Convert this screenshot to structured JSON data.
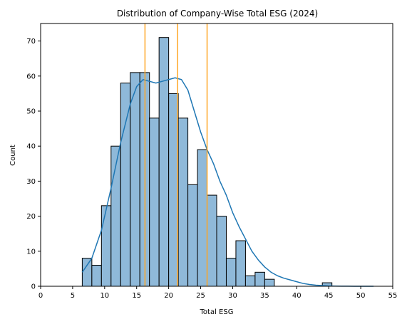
{
  "chart_data": {
    "type": "bar",
    "title": "Distribution of Company-Wise Total ESG (2024)",
    "xlabel": "Total ESG",
    "ylabel": "Count",
    "xlim": [
      0,
      55
    ],
    "ylim": [
      0,
      75
    ],
    "xticks": [
      0,
      5,
      10,
      15,
      20,
      25,
      30,
      35,
      40,
      45,
      50,
      55
    ],
    "yticks": [
      0,
      10,
      20,
      30,
      40,
      50,
      60,
      70
    ],
    "grid": false,
    "bin_width": 1.5,
    "bin_start": 6.5,
    "bins": [
      {
        "x0": 6.5,
        "x1": 8.0,
        "count": 8
      },
      {
        "x0": 8.0,
        "x1": 9.5,
        "count": 6
      },
      {
        "x0": 9.5,
        "x1": 11.0,
        "count": 23
      },
      {
        "x0": 11.0,
        "x1": 12.5,
        "count": 40
      },
      {
        "x0": 12.5,
        "x1": 14.0,
        "count": 58
      },
      {
        "x0": 14.0,
        "x1": 15.5,
        "count": 61
      },
      {
        "x0": 15.5,
        "x1": 17.0,
        "count": 61
      },
      {
        "x0": 17.0,
        "x1": 18.5,
        "count": 48
      },
      {
        "x0": 18.5,
        "x1": 20.0,
        "count": 71
      },
      {
        "x0": 20.0,
        "x1": 21.5,
        "count": 55
      },
      {
        "x0": 21.5,
        "x1": 23.0,
        "count": 48
      },
      {
        "x0": 23.0,
        "x1": 24.5,
        "count": 29
      },
      {
        "x0": 24.5,
        "x1": 26.0,
        "count": 39
      },
      {
        "x0": 26.0,
        "x1": 27.5,
        "count": 26
      },
      {
        "x0": 27.5,
        "x1": 29.0,
        "count": 20
      },
      {
        "x0": 29.0,
        "x1": 30.5,
        "count": 8
      },
      {
        "x0": 30.5,
        "x1": 32.0,
        "count": 13
      },
      {
        "x0": 32.0,
        "x1": 33.5,
        "count": 3
      },
      {
        "x0": 33.5,
        "x1": 35.0,
        "count": 4
      },
      {
        "x0": 35.0,
        "x1": 36.5,
        "count": 2
      },
      {
        "x0": 36.5,
        "x1": 38.0,
        "count": 0
      },
      {
        "x0": 38.0,
        "x1": 39.5,
        "count": 0
      },
      {
        "x0": 39.5,
        "x1": 41.0,
        "count": 0
      },
      {
        "x0": 41.0,
        "x1": 42.5,
        "count": 0
      },
      {
        "x0": 42.5,
        "x1": 44.0,
        "count": 0
      },
      {
        "x0": 44.0,
        "x1": 45.5,
        "count": 1
      },
      {
        "x0": 45.5,
        "x1": 47.0,
        "count": 0
      },
      {
        "x0": 47.0,
        "x1": 48.5,
        "count": 0
      },
      {
        "x0": 48.5,
        "x1": 50.0,
        "count": 0
      },
      {
        "x0": 50.0,
        "x1": 51.5,
        "count": 0
      },
      {
        "x0": 51.5,
        "x1": 53.0,
        "count": 0
      }
    ],
    "kde": {
      "x": [
        6.5,
        8,
        9.5,
        11,
        12.5,
        14,
        15,
        16,
        17,
        18,
        19,
        20,
        21,
        22,
        23,
        24,
        25,
        26,
        27,
        28,
        29,
        30,
        31,
        32,
        33,
        34,
        35,
        36,
        37,
        38,
        39,
        40,
        41,
        42,
        43,
        44,
        45,
        46,
        47,
        48,
        49,
        50,
        51,
        52
      ],
      "y": [
        4,
        8,
        16,
        28,
        41,
        52,
        57,
        59,
        58.5,
        58,
        58.5,
        59,
        59.5,
        59,
        56,
        50,
        44,
        39,
        35,
        30,
        26,
        21,
        17,
        13.5,
        10,
        7.5,
        5.5,
        4,
        3,
        2.3,
        1.8,
        1.3,
        0.8,
        0.5,
        0.3,
        0.2,
        0.1,
        0.05,
        0.03,
        0.02,
        0.01,
        0,
        0,
        0
      ]
    },
    "vlines": [
      16.3,
      21.4,
      26.0
    ],
    "colors": {
      "bar_fill": "#8fb9d9",
      "bar_edge": "#000000",
      "kde_line": "#1f77b4",
      "vline": "#ffa726"
    }
  }
}
